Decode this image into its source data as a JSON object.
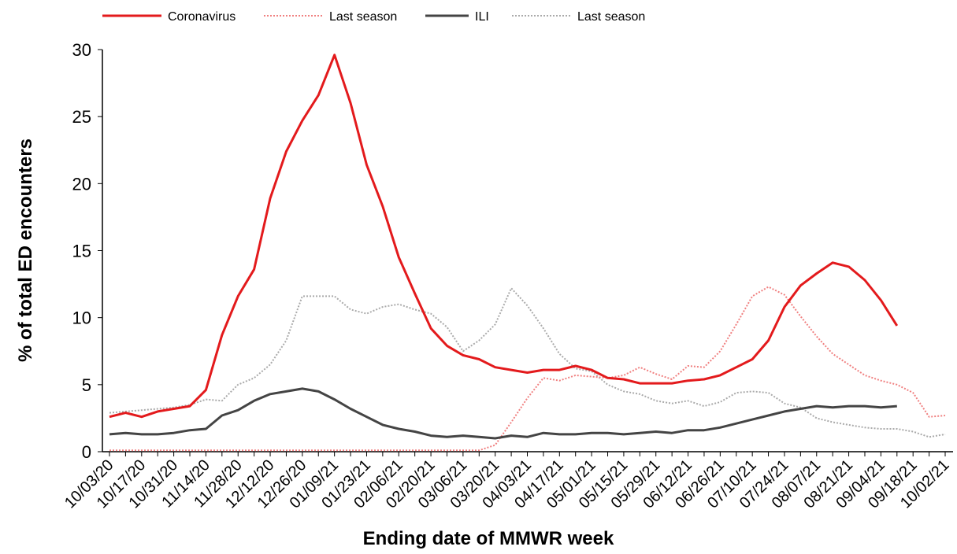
{
  "chart_data": {
    "type": "line",
    "x_label": "Ending date of MMWR week",
    "y_label": "% of total ED encounters",
    "categories": [
      "10/03/20",
      null,
      "10/17/20",
      null,
      "10/31/20",
      null,
      "11/14/20",
      null,
      "11/28/20",
      null,
      "12/12/20",
      null,
      "12/26/20",
      null,
      "01/09/21",
      null,
      "01/23/21",
      null,
      "02/06/21",
      null,
      "02/20/21",
      null,
      "03/06/21",
      null,
      "03/20/21",
      null,
      "04/03/21",
      null,
      "04/17/21",
      null,
      "05/01/21",
      null,
      "05/15/21",
      null,
      "05/29/21",
      null,
      "06/12/21",
      null,
      "06/26/21",
      null,
      "07/10/21",
      null,
      "07/24/21",
      null,
      "08/07/21",
      null,
      "08/21/21",
      null,
      "09/04/21",
      null,
      "09/18/21",
      null,
      "10/02/21"
    ],
    "series": [
      {
        "name": "Coronavirus",
        "color": "#e31a1c",
        "style": "solid",
        "values": [
          2.6,
          2.9,
          2.6,
          3.0,
          3.2,
          3.4,
          4.6,
          8.7,
          11.6,
          13.6,
          18.9,
          22.4,
          24.7,
          26.6,
          29.6,
          26.0,
          21.4,
          18.3,
          14.5,
          11.8,
          9.2,
          7.9,
          7.2,
          6.9,
          6.3,
          6.1,
          5.9,
          6.1,
          6.1,
          6.4,
          6.1,
          5.5,
          5.4,
          5.1,
          5.1,
          5.1,
          5.3,
          5.4,
          5.7,
          6.3,
          6.9,
          8.3,
          10.8,
          12.4,
          13.3,
          14.1,
          13.8,
          12.8,
          11.3,
          9.4,
          null,
          null,
          null
        ]
      },
      {
        "name": "Last season",
        "color": "#f08080",
        "style": "dotted",
        "values": [
          0.1,
          0.1,
          0.1,
          0.1,
          0.1,
          0.1,
          0.1,
          0.1,
          0.1,
          0.1,
          0.1,
          0.1,
          0.1,
          0.1,
          0.1,
          0.1,
          0.1,
          0.1,
          0.1,
          0.1,
          0.1,
          0.1,
          0.1,
          0.1,
          0.5,
          2.2,
          4.0,
          5.5,
          5.3,
          5.7,
          5.6,
          5.5,
          5.7,
          6.3,
          5.8,
          5.4,
          6.4,
          6.3,
          7.5,
          9.5,
          11.6,
          12.3,
          11.7,
          10.1,
          8.6,
          7.3,
          6.5,
          5.7,
          5.3,
          5.0,
          4.4,
          2.6,
          2.7
        ]
      },
      {
        "name": "ILI",
        "color": "#444444",
        "style": "solid",
        "values": [
          1.3,
          1.4,
          1.3,
          1.3,
          1.4,
          1.6,
          1.7,
          2.7,
          3.1,
          3.8,
          4.3,
          4.5,
          4.7,
          4.5,
          3.9,
          3.2,
          2.6,
          2.0,
          1.7,
          1.5,
          1.2,
          1.1,
          1.2,
          1.1,
          1.0,
          1.2,
          1.1,
          1.4,
          1.3,
          1.3,
          1.4,
          1.4,
          1.3,
          1.4,
          1.5,
          1.4,
          1.6,
          1.6,
          1.8,
          2.1,
          2.4,
          2.7,
          3.0,
          3.2,
          3.4,
          3.3,
          3.4,
          3.4,
          3.3,
          3.4,
          null,
          null,
          null
        ]
      },
      {
        "name": "Last season",
        "color": "#aaaaaa",
        "style": "dotted",
        "values": [
          2.9,
          3.0,
          3.1,
          3.2,
          3.3,
          3.5,
          3.9,
          3.8,
          5.0,
          5.5,
          6.5,
          8.3,
          11.6,
          11.6,
          11.6,
          10.6,
          10.3,
          10.8,
          11.0,
          10.6,
          10.3,
          9.3,
          7.5,
          8.3,
          9.5,
          12.2,
          10.9,
          9.2,
          7.3,
          6.2,
          6.0,
          5.0,
          4.5,
          4.3,
          3.8,
          3.6,
          3.8,
          3.4,
          3.7,
          4.4,
          4.5,
          4.4,
          3.6,
          3.3,
          2.5,
          2.2,
          2.0,
          1.8,
          1.7,
          1.7,
          1.5,
          1.1,
          1.3
        ]
      }
    ],
    "ylim": [
      0,
      30
    ],
    "yticks": [
      0,
      5,
      10,
      15,
      20,
      25,
      30
    ],
    "grid": false,
    "legend": "top"
  }
}
